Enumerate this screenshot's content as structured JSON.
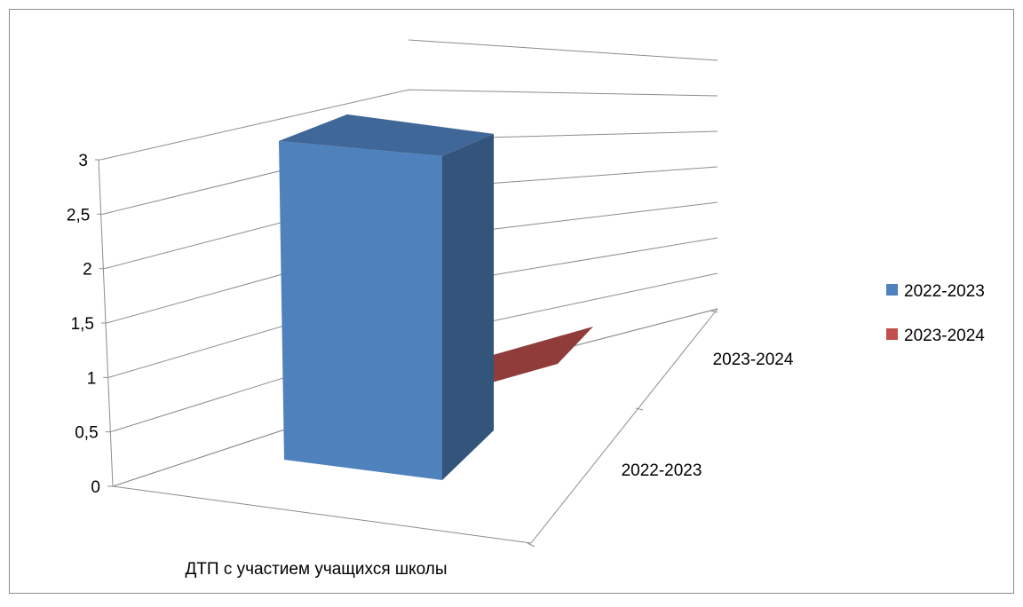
{
  "chart_data": {
    "type": "bar",
    "categories": [
      "ДТП с участием учащихся школы"
    ],
    "series": [
      {
        "name": "2022-2023",
        "values": [
          3
        ],
        "color": "#4f81bd"
      },
      {
        "name": "2023-2024",
        "values": [
          0
        ],
        "color": "#c0504d"
      }
    ],
    "depth_labels": [
      "2022-2023",
      "2023-2024"
    ],
    "y_ticks": [
      "0",
      "0,5",
      "1",
      "1,5",
      "2",
      "2,5",
      "3"
    ],
    "ylim": [
      0,
      3.5
    ],
    "grid": true,
    "legend_position": "right",
    "title": "",
    "xlabel": "",
    "ylabel": ""
  }
}
